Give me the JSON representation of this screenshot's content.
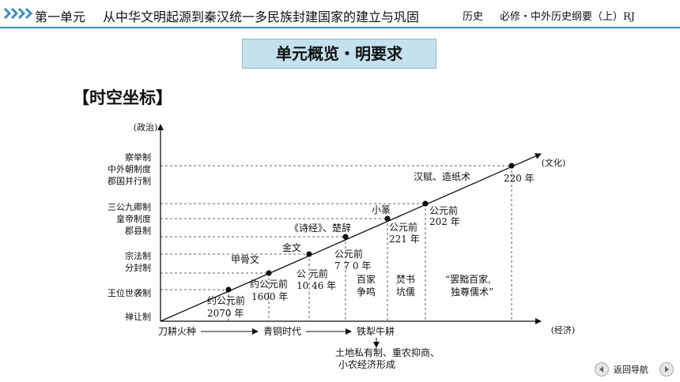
{
  "header": {
    "unit": "第一单元",
    "title": "从中华文明起源到秦汉统一多民族封建国家的建立与巩固",
    "subject": "历史",
    "book": "必修・中外历史纲要（上）RJ"
  },
  "banner": "单元概览・明要求",
  "section_title": "【时空坐标】",
  "diagram": {
    "y_axis_label": "(政治)",
    "x_axis_label": "(经济)",
    "diagonal_label": "(文化)",
    "y_items": [
      "察举制",
      "中外朝制度",
      "郡国并行制",
      "三公九卿制",
      "皇帝制度",
      "郡县制",
      "宗法制",
      "分封制",
      "王位世袭制",
      "禅让制"
    ],
    "points": [
      {
        "date": "约公元前2070年",
        "date_line1": "约公元前",
        "date_line2": "2070 年",
        "culture": ""
      },
      {
        "date": "约公元前1600年",
        "date_line1": "约公元前",
        "date_line2": "1600 年",
        "culture": "甲骨文"
      },
      {
        "date": "公元前1046年",
        "date_line1": "公  元前",
        "date_line2": "10 46 年",
        "culture": "金文"
      },
      {
        "date": "公元前770年",
        "date_line1": "公元前",
        "date_line2": "7 7 0 年",
        "culture": "《诗经》、楚辞"
      },
      {
        "date": "公元前221年",
        "date_line1": "公元前",
        "date_line2": "221 年",
        "culture": "小篆"
      },
      {
        "date": "公元前202年",
        "date_line1": "公元前",
        "date_line2": "202 年",
        "culture": ""
      },
      {
        "date": "220年",
        "date_line1": "220 年",
        "date_line2": "",
        "culture": "汉赋、造纸术"
      }
    ],
    "period_events": [
      {
        "line1": "百家",
        "line2": "争鸣"
      },
      {
        "line1": "焚书",
        "line2": "坑儒"
      },
      {
        "line1": "“罢黜百家,",
        "line2": "独尊儒术”"
      }
    ],
    "x_items": [
      "刀耕火种",
      "青铜时代",
      "铁犁牛耕"
    ],
    "x_note_line1": "土地私有制、重农抑商、",
    "x_note_line2": "小农经济形成"
  },
  "nav": {
    "label": "返回导航"
  },
  "colors": {
    "header_line": "#3a8ec4",
    "banner_bg": "#c4e1ee"
  }
}
